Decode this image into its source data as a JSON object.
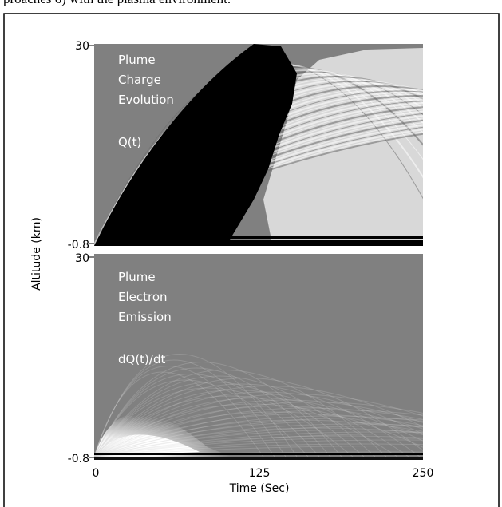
{
  "header": {
    "text": "proaches 6) with the plasma environment."
  },
  "figure": {
    "y_axis_label": "Altitude (km)",
    "x_axis_label": "Time (Sec)",
    "x_ticks": [
      "0",
      "125",
      "250"
    ],
    "panels": [
      {
        "label_lines": [
          "Plume",
          "Charge",
          "Evolution"
        ],
        "formula": "Q(t)",
        "y_ticks": [
          "30",
          "-0.8"
        ]
      },
      {
        "label_lines": [
          "Plume",
          "Electron",
          "Emission"
        ],
        "formula": "dQ(t)/dt",
        "y_ticks": [
          "30",
          "-0.8"
        ]
      }
    ]
  }
}
